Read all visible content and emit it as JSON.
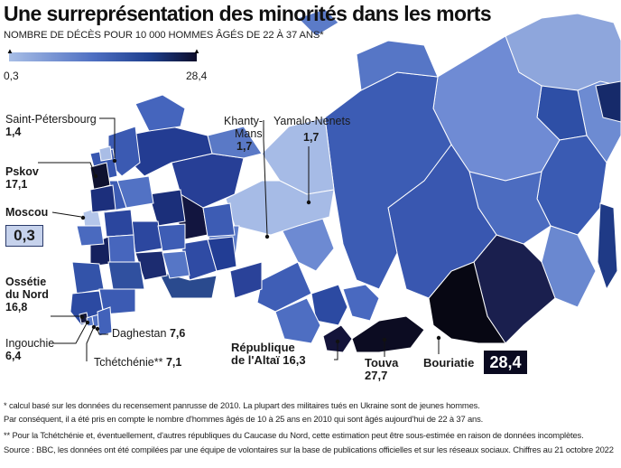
{
  "title": "Une surreprésentation des minorités dans les morts",
  "subtitle": "NOMBRE DE DÉCÈS POUR 10 000 HOMMES ÂGÉS DE 22 À 37 ANS*",
  "legend": {
    "min": "0,3",
    "max": "28,4",
    "colors": [
      "#a8bee6",
      "#4e6fc2",
      "#1e3f8e",
      "#0d0d2a"
    ]
  },
  "regions": [
    {
      "name": "Saint-Pétersbourg",
      "value": "1,4"
    },
    {
      "name": "Pskov",
      "value": "17,1"
    },
    {
      "name": "Moscou",
      "value": "0,3"
    },
    {
      "name": "Ossétie du Nord",
      "line1": "Ossétie",
      "line2": "du Nord",
      "value": "16,8"
    },
    {
      "name": "Ingouchie",
      "value": "6,4"
    },
    {
      "name": "Daghestan",
      "value": "7,6"
    },
    {
      "name": "Tchétchénie**",
      "value": "7,1"
    },
    {
      "name": "Khanty-Mansi",
      "line1": "Khanty-",
      "line2": "Mansi",
      "value": "1,7"
    },
    {
      "name": "Yamalo-Nenets",
      "value": "1,7"
    },
    {
      "name": "République de l'Altaï",
      "line1": "République",
      "line2": "de l'Altaï",
      "value": "16,3"
    },
    {
      "name": "Touva",
      "value": "27,7"
    },
    {
      "name": "Bouriatie",
      "value": "28,4"
    }
  ],
  "footnotes": [
    "* calcul basé sur les données du recensement panrusse de 2010. La plupart des militaires tués en Ukraine sont de jeunes hommes.",
    "Par conséquent, il a été pris en compte le nombre d'hommes âgés de 10 à 25 ans en 2010 qui sont âgés aujourd'hui de 22 à 37 ans.",
    "** Pour la Tchétchénie et, éventuellement, d'autres républiques du Caucase du Nord, cette estimation peut être sous-estimée en raison de données incomplètes.",
    "Source : BBC, les données ont été compilées par une équipe de volontaires sur la base de publications officielles et sur les réseaux sociaux. Chiffres au 21 octobre 2022"
  ]
}
